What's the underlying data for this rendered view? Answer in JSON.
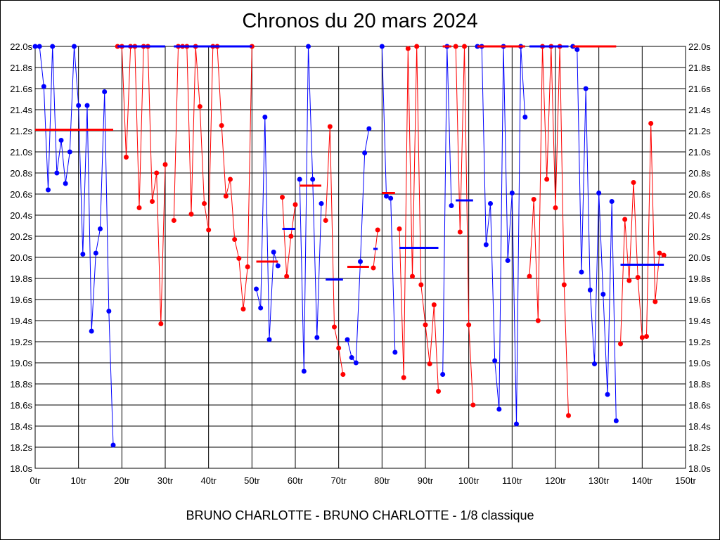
{
  "chart_data": {
    "type": "line",
    "title": "Chronos du 20 mars 2024",
    "subtitle": "BRUNO CHARLOTTE - BRUNO CHARLOTTE - 1/8 classique",
    "xlim": [
      0,
      150
    ],
    "ylim": [
      18.0,
      22.0
    ],
    "grid": true,
    "x_ticks": [
      0,
      10,
      20,
      30,
      40,
      50,
      60,
      70,
      80,
      90,
      100,
      110,
      120,
      130,
      140,
      150
    ],
    "x_tick_labels": [
      "0tr",
      "10tr",
      "20tr",
      "30tr",
      "40tr",
      "50tr",
      "60tr",
      "70tr",
      "80tr",
      "90tr",
      "100tr",
      "110tr",
      "120tr",
      "130tr",
      "140tr",
      "150tr"
    ],
    "y_ticks": [
      18.0,
      18.2,
      18.4,
      18.6,
      18.8,
      19.0,
      19.2,
      19.4,
      19.6,
      19.8,
      20.0,
      20.2,
      20.4,
      20.6,
      20.8,
      21.0,
      21.2,
      21.4,
      21.6,
      21.8,
      22.0
    ],
    "y_tick_labels": [
      "18.0s",
      "18.2s",
      "18.4s",
      "18.6s",
      "18.8s",
      "19.0s",
      "19.2s",
      "19.4s",
      "19.6s",
      "19.8s",
      "20.0s",
      "20.2s",
      "20.4s",
      "20.6s",
      "20.8s",
      "21.0s",
      "21.2s",
      "21.4s",
      "21.6s",
      "21.8s",
      "22.0s"
    ],
    "colors": {
      "blue": "#0000ff",
      "red": "#ff0000"
    },
    "segments": [
      {
        "color": "blue",
        "points": [
          [
            0,
            22.0
          ],
          [
            1,
            22.0
          ],
          [
            2,
            21.62
          ],
          [
            3,
            20.64
          ],
          [
            4,
            22.0
          ],
          [
            5,
            20.8
          ],
          [
            6,
            21.11
          ],
          [
            7,
            20.7
          ],
          [
            8,
            21.0
          ],
          [
            9,
            22.0
          ],
          [
            10,
            21.44
          ],
          [
            11,
            20.03
          ],
          [
            12,
            21.44
          ],
          [
            13,
            19.3
          ],
          [
            14,
            20.04
          ],
          [
            15,
            20.27
          ],
          [
            16,
            21.57
          ],
          [
            17,
            19.49
          ],
          [
            18,
            18.22
          ]
        ],
        "mean": {
          "x1": 0,
          "x2": 18,
          "y": 21.21,
          "color": "red"
        }
      },
      {
        "color": "red",
        "points": [
          [
            19,
            22.0
          ],
          [
            20,
            22.0
          ],
          [
            21,
            20.95
          ],
          [
            22,
            22.0
          ],
          [
            23,
            22.0
          ],
          [
            24,
            20.47
          ],
          [
            25,
            22.0
          ],
          [
            26,
            22.0
          ],
          [
            27,
            20.53
          ],
          [
            28,
            20.8
          ],
          [
            29,
            19.37
          ],
          [
            30,
            20.88
          ]
        ],
        "mean": {
          "x1": 19,
          "x2": 30,
          "y": 22.0,
          "color": "blue"
        }
      },
      {
        "color": "red",
        "points": [
          [
            32,
            20.35
          ],
          [
            33,
            22.0
          ],
          [
            34,
            22.0
          ],
          [
            35,
            22.0
          ],
          [
            36,
            20.41
          ],
          [
            37,
            22.0
          ],
          [
            38,
            21.43
          ],
          [
            39,
            20.51
          ],
          [
            40,
            20.26
          ],
          [
            41,
            22.0
          ],
          [
            42,
            22.0
          ],
          [
            43,
            21.25
          ],
          [
            44,
            20.58
          ],
          [
            45,
            20.74
          ],
          [
            46,
            20.17
          ],
          [
            47,
            19.99
          ],
          [
            48,
            19.51
          ],
          [
            49,
            19.91
          ],
          [
            50,
            22.0
          ]
        ],
        "mean": {
          "x1": 32,
          "x2": 50,
          "y": 22.0,
          "color": "blue"
        }
      },
      {
        "color": "blue",
        "points": [
          [
            51,
            19.7
          ],
          [
            52,
            19.52
          ],
          [
            53,
            21.33
          ],
          [
            54,
            19.22
          ],
          [
            55,
            20.05
          ],
          [
            56,
            19.92
          ]
        ],
        "mean": {
          "x1": 51,
          "x2": 56,
          "y": 19.96,
          "color": "red"
        }
      },
      {
        "color": "red",
        "points": [
          [
            57,
            20.57
          ],
          [
            58,
            19.82
          ],
          [
            59,
            20.2
          ],
          [
            60,
            20.5
          ]
        ],
        "mean": {
          "x1": 57,
          "x2": 60,
          "y": 20.27,
          "color": "blue"
        }
      },
      {
        "color": "blue",
        "points": [
          [
            61,
            20.74
          ],
          [
            62,
            18.92
          ],
          [
            63,
            22.0
          ],
          [
            64,
            20.74
          ],
          [
            65,
            19.24
          ],
          [
            66,
            20.51
          ]
        ],
        "mean": {
          "x1": 61,
          "x2": 66,
          "y": 20.68,
          "color": "red"
        }
      },
      {
        "color": "red",
        "points": [
          [
            67,
            20.35
          ],
          [
            68,
            21.24
          ],
          [
            69,
            19.34
          ],
          [
            70,
            19.14
          ],
          [
            71,
            18.89
          ]
        ],
        "mean": {
          "x1": 67,
          "x2": 71,
          "y": 19.79,
          "color": "blue"
        }
      },
      {
        "color": "blue",
        "points": [
          [
            72,
            19.22
          ],
          [
            73,
            19.05
          ],
          [
            74,
            19.0
          ],
          [
            75,
            19.96
          ],
          [
            76,
            20.99
          ],
          [
            77,
            21.22
          ]
        ],
        "mean": {
          "x1": 72,
          "x2": 77,
          "y": 19.91,
          "color": "red"
        }
      },
      {
        "color": "red",
        "points": [
          [
            78,
            19.9
          ],
          [
            79,
            20.26
          ]
        ],
        "mean": {
          "x1": 78,
          "x2": 79,
          "y": 20.08,
          "color": "blue"
        }
      },
      {
        "color": "blue",
        "points": [
          [
            80,
            22.0
          ],
          [
            81,
            20.58
          ],
          [
            82,
            20.56
          ],
          [
            83,
            19.1
          ]
        ],
        "mean": {
          "x1": 80,
          "x2": 83,
          "y": 20.61,
          "color": "red"
        }
      },
      {
        "color": "red",
        "points": [
          [
            84,
            20.27
          ],
          [
            85,
            18.86
          ],
          [
            86,
            21.98
          ],
          [
            87,
            19.82
          ],
          [
            88,
            22.0
          ],
          [
            89,
            19.74
          ],
          [
            90,
            19.36
          ],
          [
            91,
            18.99
          ],
          [
            92,
            19.55
          ],
          [
            93,
            18.73
          ]
        ],
        "mean": {
          "x1": 84,
          "x2": 93,
          "y": 20.09,
          "color": "blue"
        }
      },
      {
        "color": "blue",
        "points": [
          [
            94,
            18.89
          ],
          [
            95,
            22.0
          ],
          [
            96,
            20.49
          ]
        ],
        "mean": {
          "x1": 94,
          "x2": 96,
          "y": 22.0,
          "color": "red"
        }
      },
      {
        "color": "red",
        "points": [
          [
            97,
            22.0
          ],
          [
            98,
            20.24
          ],
          [
            99,
            22.0
          ],
          [
            100,
            19.36
          ],
          [
            101,
            18.6
          ]
        ],
        "mean": {
          "x1": 97,
          "x2": 101,
          "y": 20.54,
          "color": "blue"
        }
      },
      {
        "color": "blue",
        "points": [
          [
            102,
            22.0
          ],
          [
            103,
            22.0
          ],
          [
            104,
            20.12
          ],
          [
            105,
            20.51
          ],
          [
            106,
            19.02
          ],
          [
            107,
            18.56
          ],
          [
            108,
            22.0
          ],
          [
            109,
            19.97
          ],
          [
            110,
            20.61
          ],
          [
            111,
            18.42
          ],
          [
            112,
            22.0
          ],
          [
            113,
            21.33
          ]
        ],
        "mean": {
          "x1": 102,
          "x2": 113,
          "y": 22.0,
          "color": "red"
        }
      },
      {
        "color": "red",
        "points": [
          [
            114,
            19.82
          ],
          [
            115,
            20.55
          ],
          [
            116,
            19.4
          ],
          [
            117,
            22.0
          ],
          [
            118,
            20.74
          ],
          [
            119,
            22.0
          ],
          [
            120,
            20.47
          ],
          [
            121,
            22.0
          ],
          [
            122,
            19.74
          ],
          [
            123,
            18.5
          ]
        ],
        "mean": {
          "x1": 114,
          "x2": 123,
          "y": 22.0,
          "color": "blue"
        }
      },
      {
        "color": "blue",
        "points": [
          [
            124,
            22.0
          ],
          [
            125,
            21.97
          ],
          [
            126,
            19.86
          ],
          [
            127,
            21.6
          ],
          [
            128,
            19.69
          ],
          [
            129,
            18.99
          ],
          [
            130,
            20.61
          ],
          [
            131,
            19.65
          ],
          [
            132,
            18.7
          ],
          [
            133,
            20.53
          ],
          [
            134,
            18.45
          ]
        ],
        "mean": {
          "x1": 124,
          "x2": 134,
          "y": 22.0,
          "color": "red"
        }
      },
      {
        "color": "red",
        "points": [
          [
            135,
            19.18
          ],
          [
            136,
            20.36
          ],
          [
            137,
            19.78
          ],
          [
            138,
            20.71
          ],
          [
            139,
            19.81
          ],
          [
            140,
            19.24
          ],
          [
            141,
            19.25
          ],
          [
            142,
            21.27
          ],
          [
            143,
            19.58
          ],
          [
            144,
            20.04
          ],
          [
            145,
            20.02
          ]
        ],
        "mean": {
          "x1": 135,
          "x2": 145,
          "y": 19.93,
          "color": "blue"
        }
      }
    ]
  }
}
